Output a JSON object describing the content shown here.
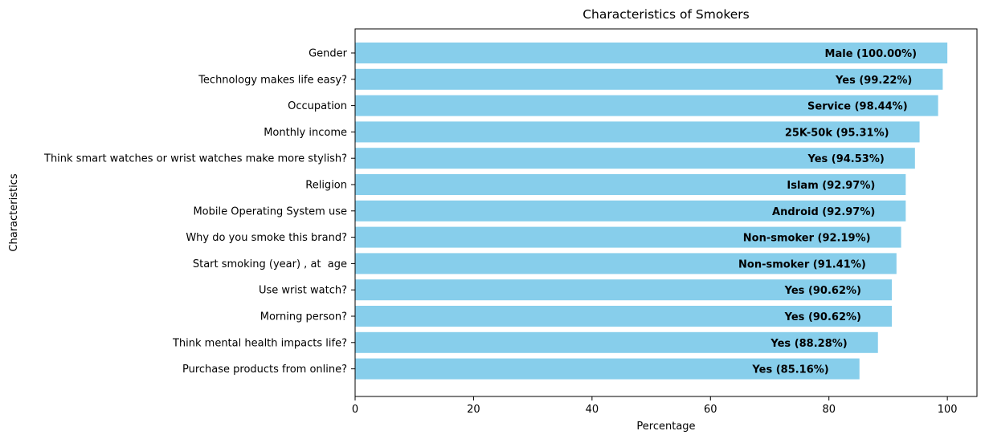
{
  "chart_data": {
    "type": "bar",
    "orientation": "horizontal",
    "title": "Characteristics of Smokers",
    "xlabel": "Percentage",
    "ylabel": "Characteristics",
    "xlim": [
      0,
      105
    ],
    "xticks": [
      0,
      20,
      40,
      60,
      80,
      100
    ],
    "grid": false,
    "bar_color": "#87CEEB",
    "categories": [
      "Gender",
      "Technology makes life easy?",
      "Occupation",
      "Monthly income",
      "Think smart watches or wrist watches make more stylish?",
      "Religion",
      "Mobile Operating System use",
      "Why do you smoke this brand?",
      "Start smoking (year) , at  age",
      "Use wrist watch?",
      "Morning person?",
      "Think mental health impacts life?",
      "Purchase products from online?"
    ],
    "values": [
      100.0,
      99.22,
      98.44,
      95.31,
      94.53,
      92.97,
      92.97,
      92.19,
      91.41,
      90.62,
      90.62,
      88.28,
      85.16
    ],
    "data_labels": [
      "Male (100.00%)",
      "Yes (99.22%)",
      "Service (98.44%)",
      "25K-50k (95.31%)",
      "Yes (94.53%)",
      "Islam (92.97%)",
      "Android (92.97%)",
      "Non-smoker (92.19%)",
      "Non-smoker (91.41%)",
      "Yes (90.62%)",
      "Yes (90.62%)",
      "Yes (88.28%)",
      "Yes (85.16%)"
    ]
  }
}
